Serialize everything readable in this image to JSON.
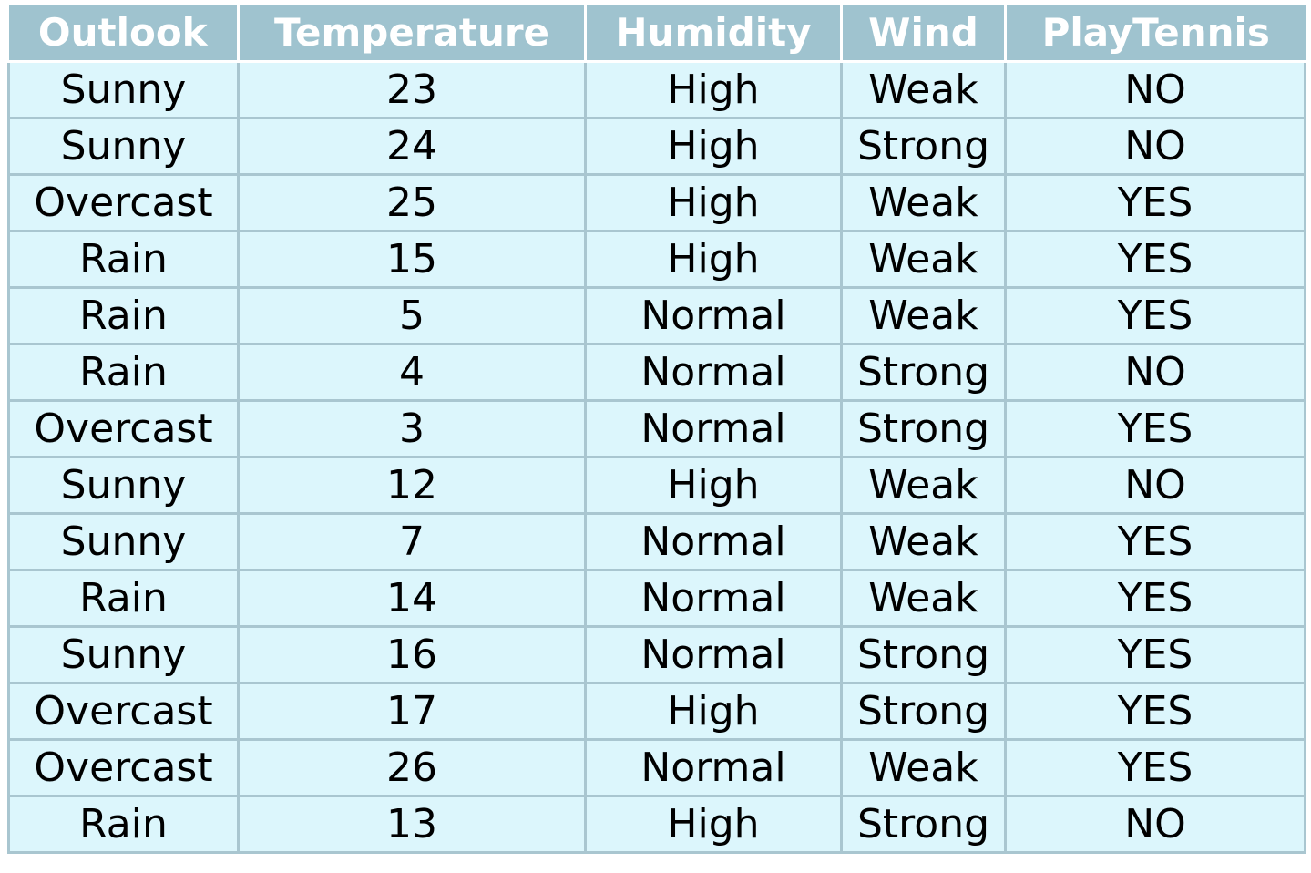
{
  "table": {
    "headers": [
      "Outlook",
      "Temperature",
      "Humidity",
      "Wind",
      "PlayTennis"
    ],
    "rows": [
      [
        "Sunny",
        "23",
        "High",
        "Weak",
        "NO"
      ],
      [
        "Sunny",
        "24",
        "High",
        "Strong",
        "NO"
      ],
      [
        "Overcast",
        "25",
        "High",
        "Weak",
        "YES"
      ],
      [
        "Rain",
        "15",
        "High",
        "Weak",
        "YES"
      ],
      [
        "Rain",
        "5",
        "Normal",
        "Weak",
        "YES"
      ],
      [
        "Rain",
        "4",
        "Normal",
        "Strong",
        "NO"
      ],
      [
        "Overcast",
        "3",
        "Normal",
        "Strong",
        "YES"
      ],
      [
        "Sunny",
        "12",
        "High",
        "Weak",
        "NO"
      ],
      [
        "Sunny",
        "7",
        "Normal",
        "Weak",
        "YES"
      ],
      [
        "Rain",
        "14",
        "Normal",
        "Weak",
        "YES"
      ],
      [
        "Sunny",
        "16",
        "Normal",
        "Strong",
        "YES"
      ],
      [
        "Overcast",
        "17",
        "High",
        "Strong",
        "YES"
      ],
      [
        "Overcast",
        "26",
        "Normal",
        "Weak",
        "YES"
      ],
      [
        "Rain",
        "13",
        "High",
        "Strong",
        "NO"
      ]
    ]
  },
  "colors": {
    "header_background": "#9fc3cf",
    "header_text": "#ffffff",
    "cell_background": "#dcf6fc",
    "cell_border": "#a9c6d0",
    "cell_text": "#000000"
  }
}
